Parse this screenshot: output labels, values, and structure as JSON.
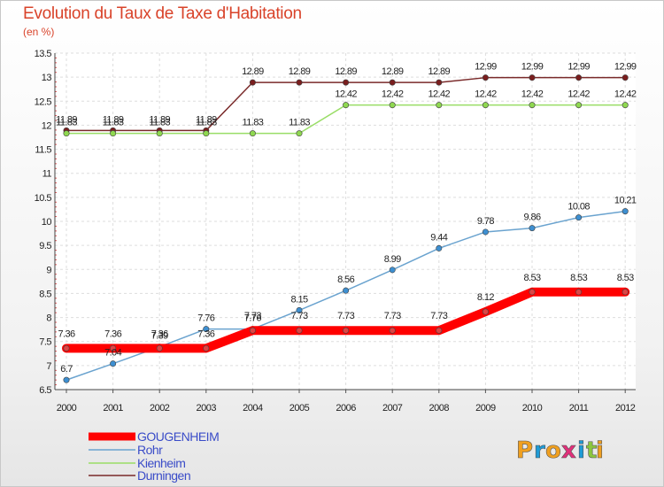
{
  "title": "Evolution du Taux de Taxe d'Habitation",
  "unit_label": "(en %)",
  "logo": {
    "letters": [
      "P",
      "r",
      "o",
      "x",
      "i",
      "t",
      "i"
    ],
    "colors": [
      "#f0a020",
      "#1f9bd6",
      "#f0a020",
      "#e0307a",
      "#1f9bd6",
      "#8cc63f",
      "#f0a020"
    ]
  },
  "chart_data": {
    "type": "line",
    "title": "Evolution du Taux de Taxe d'Habitation",
    "ylabel": "(en %)",
    "xlabel": "",
    "x": [
      "2000",
      "2001",
      "2002",
      "2003",
      "2004",
      "2005",
      "2006",
      "2007",
      "2008",
      "2009",
      "2010",
      "2011",
      "2012"
    ],
    "ylim": [
      6.5,
      13.5
    ],
    "yticks": [
      "6.5",
      "7",
      "7.5",
      "8",
      "8.5",
      "9",
      "9.5",
      "10",
      "10.5",
      "11",
      "11.5",
      "12",
      "12.5",
      "13",
      "13.5"
    ],
    "grid": true,
    "legend_position": "bottom-left",
    "series": [
      {
        "name": "GOUGENHEIM",
        "color": "#ff0000",
        "values": [
          7.36,
          7.36,
          7.36,
          7.36,
          7.73,
          7.73,
          7.73,
          7.73,
          7.73,
          8.12,
          8.53,
          8.53,
          8.53
        ],
        "labels": [
          "7.36",
          "7.36",
          "7.36",
          "7.36",
          "7.73",
          "7.73",
          "7.73",
          "7.73",
          "7.73",
          "8.12",
          "8.53",
          "8.53",
          "8.53"
        ]
      },
      {
        "name": "Rohr",
        "color": "#6aa3cf",
        "values": [
          6.7,
          7.04,
          7.39,
          7.76,
          7.76,
          8.15,
          8.56,
          8.99,
          9.44,
          9.78,
          9.86,
          10.08,
          10.21
        ],
        "labels": [
          "6.7",
          "7.04",
          "7.39",
          "7.76",
          "7.76",
          "8.15",
          "8.56",
          "8.99",
          "9.44",
          "9.78",
          "9.86",
          "10.08",
          "10.21"
        ]
      },
      {
        "name": "Kienheim",
        "color": "#99dd66",
        "values": [
          11.83,
          11.83,
          11.83,
          11.83,
          11.83,
          11.83,
          12.42,
          12.42,
          12.42,
          12.42,
          12.42,
          12.42,
          12.42
        ],
        "labels": [
          "11.83",
          "11.83",
          "11.83",
          "11.83",
          "11.83",
          "11.83",
          "12.42",
          "12.42",
          "12.42",
          "12.42",
          "12.42",
          "12.42",
          "12.42"
        ]
      },
      {
        "name": "Durningen",
        "color": "#7a2a2a",
        "values": [
          11.89,
          11.89,
          11.89,
          11.89,
          12.89,
          12.89,
          12.89,
          12.89,
          12.89,
          12.99,
          12.99,
          12.99,
          12.99
        ],
        "labels": [
          "11.89",
          "11.89",
          "11.89",
          "11.89",
          "12.89",
          "12.89",
          "12.89",
          "12.89",
          "12.89",
          "12.99",
          "12.99",
          "12.99",
          "12.99"
        ]
      }
    ]
  }
}
